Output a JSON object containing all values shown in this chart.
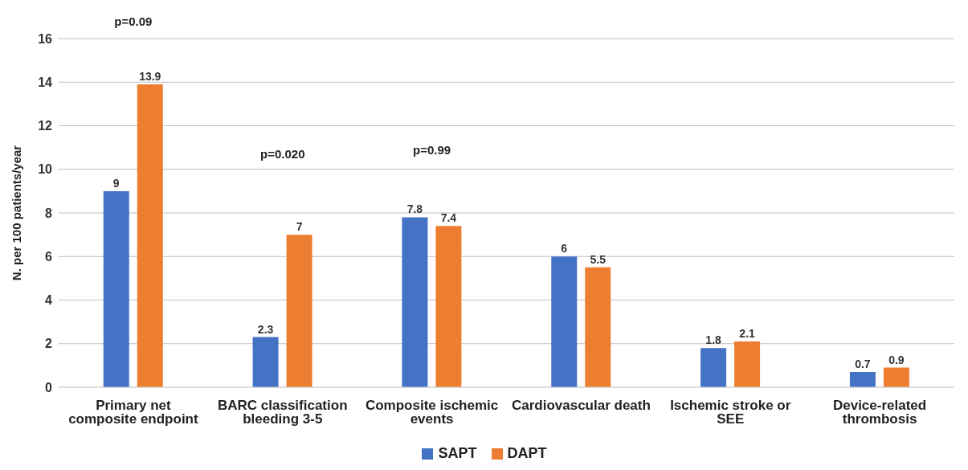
{
  "chart_data": {
    "type": "bar",
    "ylabel": "N. per 100 patients/year",
    "categories": [
      "Primary net composite endpoint",
      "BARC classification bleeding 3-5",
      "Composite ischemic events",
      "Cardiovascular death",
      "Ischemic stroke or SEE",
      "Device-related thrombosis"
    ],
    "series": [
      {
        "name": "SAPT",
        "color": "#4472c4",
        "values": [
          9,
          2.3,
          7.8,
          6,
          1.8,
          0.7
        ]
      },
      {
        "name": "DAPT",
        "color": "#ed7d31",
        "values": [
          13.9,
          7,
          7.4,
          5.5,
          2.1,
          0.9
        ]
      }
    ],
    "ylim": [
      0,
      16
    ],
    "yticks": [
      0,
      2,
      4,
      6,
      8,
      10,
      12,
      14,
      16
    ],
    "grid": "y",
    "legend": "bottom",
    "data_labels": true,
    "annotations": [
      "p=0.09",
      "p=0.020",
      "p=0.99"
    ]
  }
}
